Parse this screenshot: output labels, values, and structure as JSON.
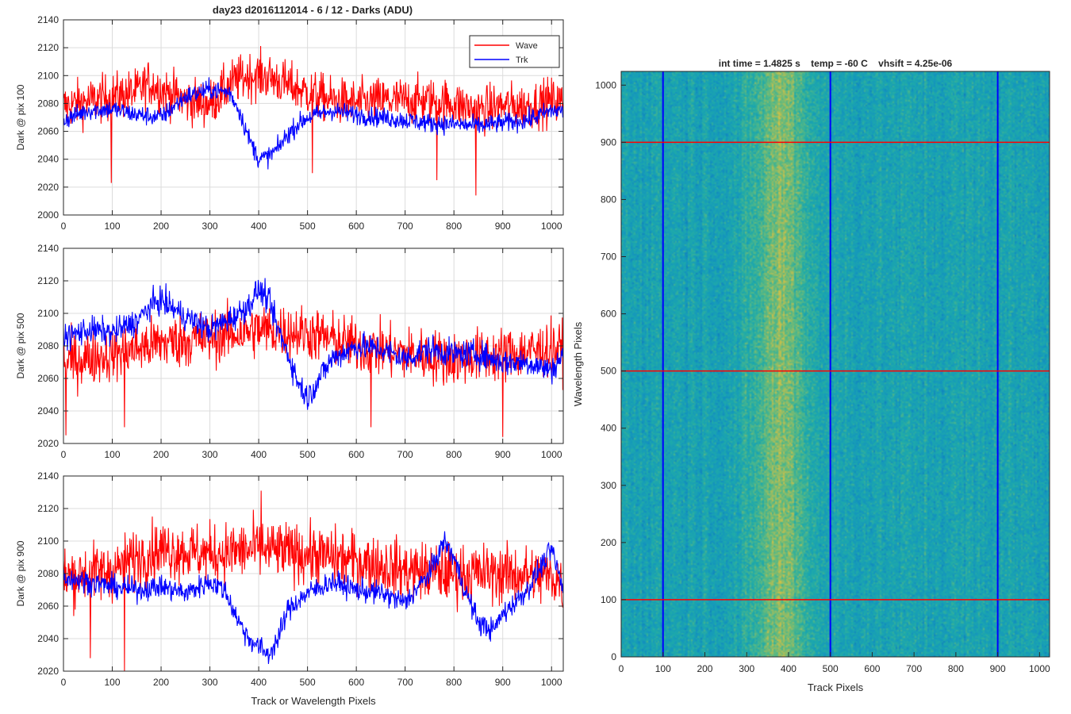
{
  "figure_title": "day23 d2016112014 - 6 / 12 - Darks (ADU)",
  "colors": {
    "wave": "#ff0000",
    "trk": "#0000ff",
    "axis": "#262626",
    "grid": "#dcdcdc"
  },
  "chart_data": [
    {
      "type": "line",
      "ylabel": "Dark @ pix 100",
      "xlabel": "",
      "xlim": [
        0,
        1024
      ],
      "ylim": [
        2000,
        2140
      ],
      "x_ticks": [
        0,
        100,
        200,
        300,
        400,
        500,
        600,
        700,
        800,
        900,
        1000
      ],
      "y_ticks": [
        2000,
        2020,
        2040,
        2060,
        2080,
        2100,
        2120,
        2140
      ],
      "grid": true,
      "legend": {
        "placement": "top-right",
        "entries": [
          "Wave",
          "Trk"
        ]
      },
      "series": [
        {
          "name": "Wave",
          "color": "#ff0000",
          "x": [
            0,
            100,
            150,
            175,
            200,
            250,
            300,
            350,
            380,
            400,
            430,
            460,
            500,
            550,
            600,
            650,
            700,
            750,
            800,
            850,
            900,
            950,
            1000,
            1024
          ],
          "values": [
            2078,
            2085,
            2088,
            2095,
            2090,
            2082,
            2080,
            2096,
            2100,
            2100,
            2098,
            2093,
            2088,
            2082,
            2080,
            2082,
            2082,
            2082,
            2080,
            2075,
            2078,
            2078,
            2082,
            2080
          ],
          "noise": 12,
          "spikes": [
            [
              98,
              2023
            ],
            [
              510,
              2030
            ],
            [
              765,
              2025
            ],
            [
              845,
              2014
            ]
          ]
        },
        {
          "name": "Trk",
          "color": "#0000ff",
          "x": [
            0,
            50,
            100,
            150,
            200,
            250,
            300,
            340,
            360,
            380,
            400,
            420,
            440,
            460,
            480,
            500,
            550,
            600,
            650,
            700,
            750,
            800,
            850,
            900,
            950,
            1000,
            1024
          ],
          "values": [
            2068,
            2075,
            2076,
            2072,
            2070,
            2085,
            2090,
            2088,
            2075,
            2055,
            2040,
            2042,
            2048,
            2058,
            2065,
            2070,
            2075,
            2072,
            2070,
            2068,
            2066,
            2065,
            2064,
            2066,
            2068,
            2075,
            2075
          ],
          "noise": 5
        }
      ]
    },
    {
      "type": "line",
      "ylabel": "Dark @ pix 500",
      "xlabel": "",
      "xlim": [
        0,
        1024
      ],
      "ylim": [
        2020,
        2140
      ],
      "x_ticks": [
        0,
        100,
        200,
        300,
        400,
        500,
        600,
        700,
        800,
        900,
        1000
      ],
      "y_ticks": [
        2020,
        2040,
        2060,
        2080,
        2100,
        2120,
        2140
      ],
      "grid": true,
      "series": [
        {
          "name": "Wave",
          "color": "#ff0000",
          "x": [
            0,
            100,
            200,
            300,
            400,
            500,
            600,
            700,
            800,
            900,
            1000,
            1024
          ],
          "values": [
            2070,
            2075,
            2082,
            2085,
            2090,
            2088,
            2080,
            2075,
            2072,
            2075,
            2078,
            2078
          ],
          "noise": 12,
          "spikes": [
            [
              5,
              2025
            ],
            [
              125,
              2030
            ],
            [
              630,
              2030
            ],
            [
              900,
              2024
            ]
          ]
        },
        {
          "name": "Trk",
          "color": "#0000ff",
          "x": [
            0,
            50,
            100,
            150,
            180,
            200,
            250,
            300,
            350,
            380,
            400,
            420,
            440,
            460,
            480,
            500,
            520,
            550,
            600,
            650,
            700,
            750,
            800,
            850,
            900,
            950,
            1000,
            1024
          ],
          "values": [
            2085,
            2090,
            2088,
            2095,
            2105,
            2108,
            2098,
            2090,
            2098,
            2105,
            2115,
            2108,
            2090,
            2075,
            2058,
            2048,
            2058,
            2072,
            2080,
            2078,
            2072,
            2078,
            2075,
            2075,
            2070,
            2070,
            2065,
            2075
          ],
          "noise": 6
        }
      ]
    },
    {
      "type": "line",
      "ylabel": "Dark @ pix 900",
      "xlabel": "Track or Wavelength Pixels",
      "xlim": [
        0,
        1024
      ],
      "ylim": [
        2020,
        2140
      ],
      "x_ticks": [
        0,
        100,
        200,
        300,
        400,
        500,
        600,
        700,
        800,
        900,
        1000
      ],
      "y_ticks": [
        2020,
        2040,
        2060,
        2080,
        2100,
        2120,
        2140
      ],
      "grid": true,
      "series": [
        {
          "name": "Wave",
          "color": "#ff0000",
          "x": [
            0,
            100,
            150,
            200,
            300,
            400,
            500,
            600,
            700,
            800,
            900,
            1000,
            1024
          ],
          "values": [
            2078,
            2082,
            2090,
            2095,
            2092,
            2095,
            2092,
            2088,
            2082,
            2080,
            2080,
            2078,
            2075
          ],
          "noise": 13,
          "spikes": [
            [
              55,
              2028
            ],
            [
              125,
              2020
            ],
            [
              405,
              2131
            ]
          ]
        },
        {
          "name": "Trk",
          "color": "#0000ff",
          "x": [
            0,
            50,
            100,
            150,
            200,
            250,
            300,
            330,
            360,
            380,
            400,
            420,
            440,
            460,
            500,
            550,
            600,
            650,
            700,
            750,
            780,
            800,
            820,
            850,
            880,
            900,
            950,
            1000,
            1024
          ],
          "values": [
            2078,
            2075,
            2072,
            2070,
            2072,
            2068,
            2075,
            2070,
            2050,
            2040,
            2035,
            2030,
            2040,
            2058,
            2068,
            2075,
            2070,
            2068,
            2062,
            2080,
            2100,
            2090,
            2072,
            2050,
            2045,
            2055,
            2070,
            2095,
            2070
          ],
          "noise": 5
        }
      ]
    },
    {
      "type": "heatmap",
      "title": "int time = 1.4825 s    temp = -60 C    vhsift = 4.25e-06",
      "xlabel": "Track Pixels",
      "ylabel": "Wavelength Pixels",
      "xlim": [
        0,
        1024
      ],
      "ylim": [
        0,
        1024
      ],
      "x_ticks": [
        0,
        100,
        200,
        300,
        400,
        500,
        600,
        700,
        800,
        900,
        1000
      ],
      "y_ticks": [
        0,
        100,
        200,
        300,
        400,
        500,
        600,
        700,
        800,
        900,
        1000
      ],
      "colormap": "parula",
      "bright_band_x": [
        340,
        420
      ],
      "vertical_markers": {
        "x": [
          100,
          500,
          900
        ],
        "color": "#0000ff"
      },
      "horizontal_markers": {
        "y": [
          100,
          500,
          900
        ],
        "color": "#ff0000"
      }
    }
  ]
}
